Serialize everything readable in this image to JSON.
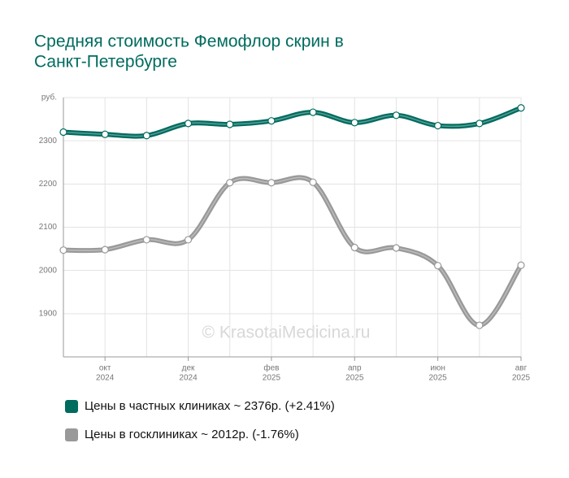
{
  "chart_data": {
    "type": "line",
    "title": [
      "Средняя стоимость Фемофлор скрин в",
      "Санкт-Петербурге"
    ],
    "watermark": "© KrasotaiMedicina.ru",
    "categories": [
      null,
      {
        "month": "окт",
        "year": "2024"
      },
      null,
      {
        "month": "дек",
        "year": "2024"
      },
      null,
      {
        "month": "фев",
        "year": "2025"
      },
      null,
      {
        "month": "апр",
        "year": "2025"
      },
      null,
      {
        "month": "июн",
        "year": "2025"
      },
      null,
      {
        "month": "авг",
        "year": "2025"
      }
    ],
    "series": [
      {
        "name": "Цены в частных клиниках ~ 2376р. (+2.41%)",
        "color": "#006b5f",
        "values": [
          2320,
          2315,
          2312,
          2340,
          2338,
          2346,
          2366,
          2342,
          2359,
          2335,
          2340,
          2376
        ]
      },
      {
        "name": "Цены в госклиниках ~ 2012р. (-1.76%)",
        "color": "#999999",
        "values": [
          2047,
          2048,
          2071,
          2071,
          2203,
          2203,
          2204,
          2053,
          2052,
          2011,
          1873,
          2012
        ]
      }
    ],
    "ylim": [
      1800,
      2400
    ],
    "yticks": [
      1900,
      2000,
      2100,
      2200,
      2300,
      {
        "value": 2400,
        "label": "руб."
      }
    ],
    "grid": true
  }
}
